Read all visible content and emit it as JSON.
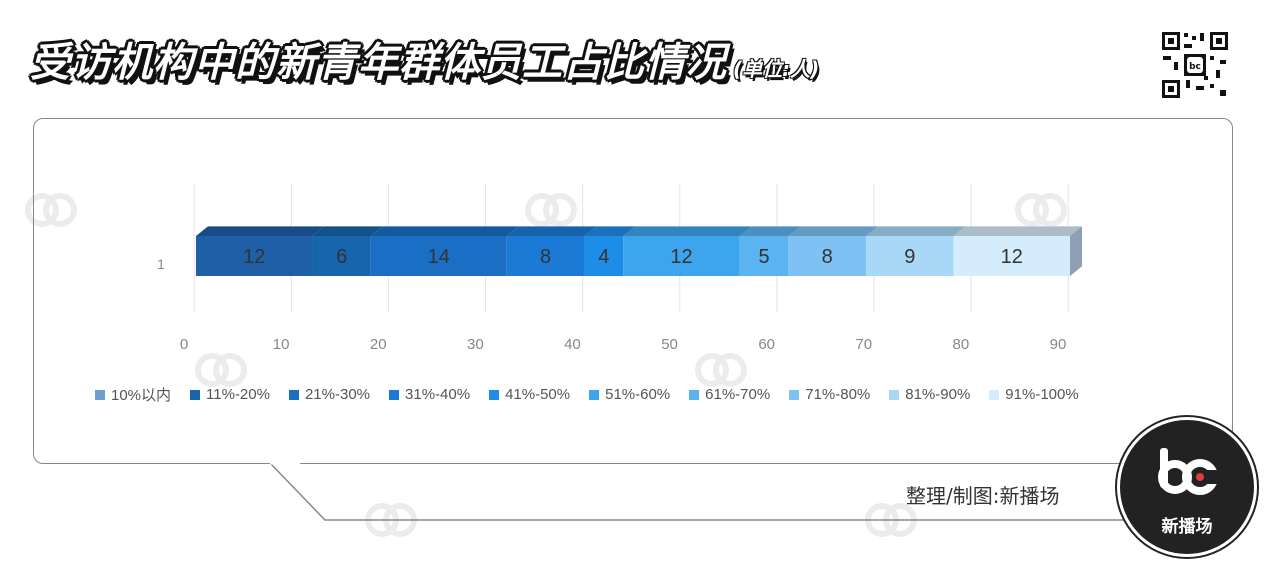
{
  "header": {
    "title": "受访机构中的新青年群体员工占比情况",
    "unit": "(单位:人)"
  },
  "chart_data": {
    "type": "bar",
    "orientation": "horizontal",
    "stacked": true,
    "categories": [
      "1"
    ],
    "series": [
      {
        "name": "10%以内",
        "values": [
          12
        ],
        "color": "#1f5fa8"
      },
      {
        "name": "11%-20%",
        "values": [
          6
        ],
        "color": "#1665ad"
      },
      {
        "name": "21%-30%",
        "values": [
          14
        ],
        "color": "#1a6fc4"
      },
      {
        "name": "31%-40%",
        "values": [
          8
        ],
        "color": "#1b7ad6"
      },
      {
        "name": "41%-50%",
        "values": [
          4
        ],
        "color": "#1e8de8"
      },
      {
        "name": "51%-60%",
        "values": [
          12
        ],
        "color": "#3ea4ee"
      },
      {
        "name": "61%-70%",
        "values": [
          5
        ],
        "color": "#5bb3ef"
      },
      {
        "name": "71%-80%",
        "values": [
          8
        ],
        "color": "#7dc2f2"
      },
      {
        "name": "81%-90%",
        "values": [
          9
        ],
        "color": "#a9d8f6"
      },
      {
        "name": "91%-100%",
        "values": [
          12
        ],
        "color": "#d4ecfb"
      }
    ],
    "xlim": [
      0,
      90
    ],
    "xticks": [
      "0",
      "10",
      "20",
      "30",
      "40",
      "50",
      "60",
      "70",
      "80",
      "90"
    ],
    "grid": true,
    "legend": "bottom"
  },
  "legend_swatch_colors": [
    "#6b9fce",
    "#1665ad",
    "#1a6fc4",
    "#1b7ad6",
    "#1e8de8",
    "#3ea4ee",
    "#5bb3ef",
    "#7dc2f2",
    "#a9d8f6",
    "#d4ecfb"
  ],
  "footer": {
    "credit": "整理/制图:新播场",
    "brand": "新播场"
  }
}
